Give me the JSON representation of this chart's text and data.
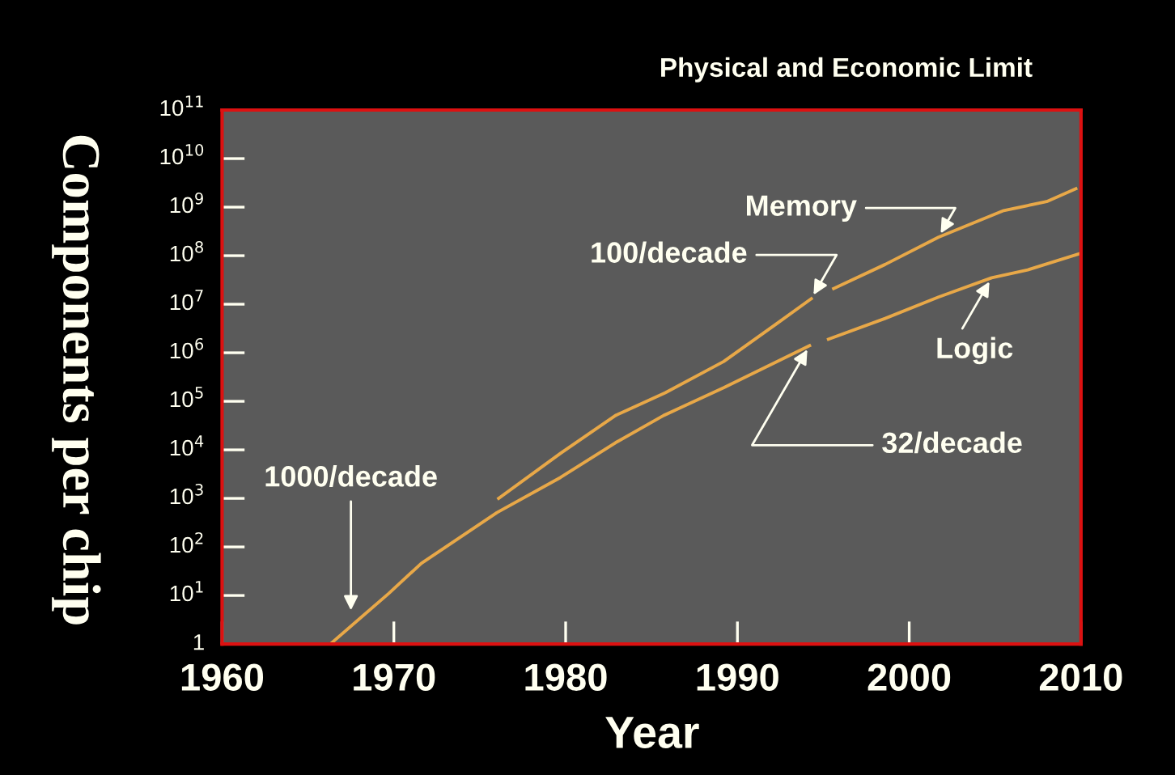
{
  "chart_data": {
    "type": "line",
    "title": "Physical and Economic Limit",
    "xlabel": "Year",
    "ylabel": "Components per chip",
    "log": "y",
    "xlim": [
      1960,
      2010
    ],
    "ylim": [
      1,
      100000000000.0
    ],
    "xticks": [
      1960,
      1970,
      1980,
      1990,
      2000,
      2010
    ],
    "yticks": [
      {
        "value": 1,
        "label": "1"
      },
      {
        "value": 10,
        "label": "10$^{1}$"
      },
      {
        "value": 100,
        "label": "10$^{2}$"
      },
      {
        "value": 1000,
        "label": "10$^{3}$"
      },
      {
        "value": 10000,
        "label": "10$^{4}$"
      },
      {
        "value": 100000,
        "label": "10$^{5}$"
      },
      {
        "value": 1000000,
        "label": "10$^{6}$"
      },
      {
        "value": 10000000,
        "label": "10$^{7}$"
      },
      {
        "value": 100000000,
        "label": "10$^{8}$"
      },
      {
        "value": 1000000000,
        "label": "10$^{9}$"
      },
      {
        "value": 10000000000,
        "label": "10$^{10}$"
      },
      {
        "value": 100000000000,
        "label": "10$^{11}$"
      }
    ],
    "grid": false,
    "legend": false,
    "marker": "none",
    "line_style": "solid",
    "series": [
      {
        "name": "Memory",
        "color": "#e8a848",
        "x": [
          1976.1,
          1979.7,
          1982.9,
          1985.8,
          1989.2,
          1992.3,
          1994.3,
          1995.0,
          1995.6,
          1998.6,
          2001.7,
          2005.5,
          2008.0,
          2009.7
        ],
        "values": [
          1000,
          8500,
          51000,
          150000,
          660000,
          4000000,
          13000000,
          null,
          21000000,
          66000000,
          240000000,
          850000000,
          1300000000,
          2400000000
        ]
      },
      {
        "name": "Logic",
        "color": "#e8a848",
        "x": [
          1966.3,
          1969.7,
          1971.6,
          1976.0,
          1979.7,
          1982.9,
          1985.7,
          1989.2,
          1994.2,
          1994.8,
          1995.3,
          1998.6,
          2001.7,
          2004.8,
          2006.9,
          2009.9
        ],
        "values": [
          1,
          11,
          46,
          510,
          2700,
          14000,
          51000,
          190000,
          1400000,
          null,
          1900000,
          5100000,
          14000000,
          35000000,
          51000000,
          110000000
        ]
      }
    ],
    "annotations": [
      {
        "text": "1000/decade",
        "x": 1967.5,
        "y": 4
      },
      {
        "text": "100/decade",
        "x": 1994.3,
        "y": 13000000
      },
      {
        "text": "32/decade",
        "x": 1994.2,
        "y": 1400000
      }
    ]
  }
}
